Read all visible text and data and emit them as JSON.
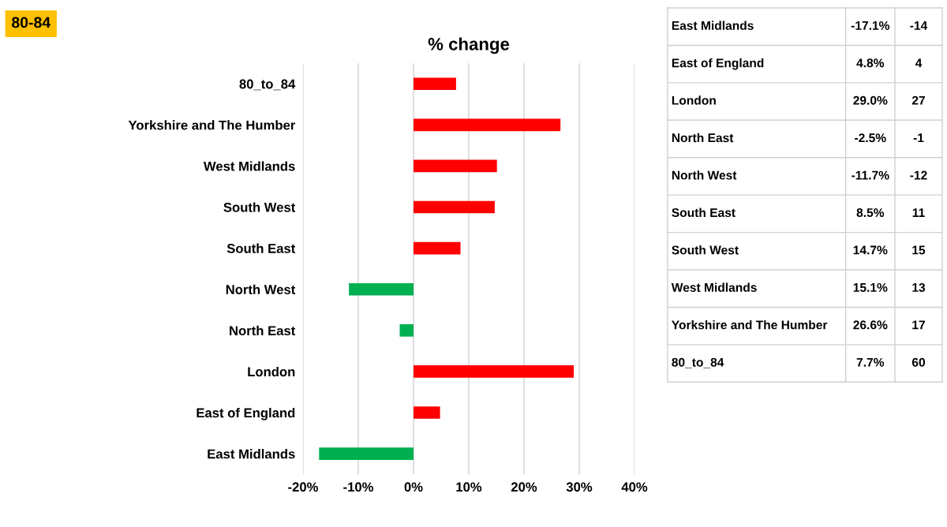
{
  "chart_data": {
    "type": "bar",
    "orientation": "horizontal",
    "title": "% change",
    "subtitle": "80-84",
    "categories": [
      "80_to_84",
      "Yorkshire and The Humber",
      "West Midlands",
      "South West",
      "South East",
      "North West",
      "North East",
      "London",
      "East of England",
      "East Midlands"
    ],
    "values": [
      7.7,
      26.6,
      15.1,
      14.7,
      8.5,
      -11.7,
      -2.5,
      29.0,
      4.8,
      -17.1
    ],
    "colors": [
      "#ff0000",
      "#ff0000",
      "#ff0000",
      "#ff0000",
      "#ff0000",
      "#00b050",
      "#00b050",
      "#ff0000",
      "#ff0000",
      "#00b050"
    ],
    "annotations": [
      "7.7%",
      "60",
      "26.6%",
      "17",
      "15.1%",
      "13",
      "14.7%",
      "15",
      "8.5%",
      "11",
      "-11.7%",
      "-12",
      "-2.5%",
      "-1",
      "29.0%",
      "27",
      "4.8%",
      "4",
      "-17.1%",
      "-14"
    ],
    "xlim": [
      -20,
      40
    ],
    "xticks": [
      {
        "value": -20,
        "label": "-20%"
      },
      {
        "value": -10,
        "label": "-10%"
      },
      {
        "value": 0,
        "label": "0%"
      },
      {
        "value": 10,
        "label": "10%"
      },
      {
        "value": 20,
        "label": "20%"
      },
      {
        "value": 30,
        "label": "30%"
      },
      {
        "value": 40,
        "label": "40%"
      }
    ],
    "grid": "x"
  }
}
